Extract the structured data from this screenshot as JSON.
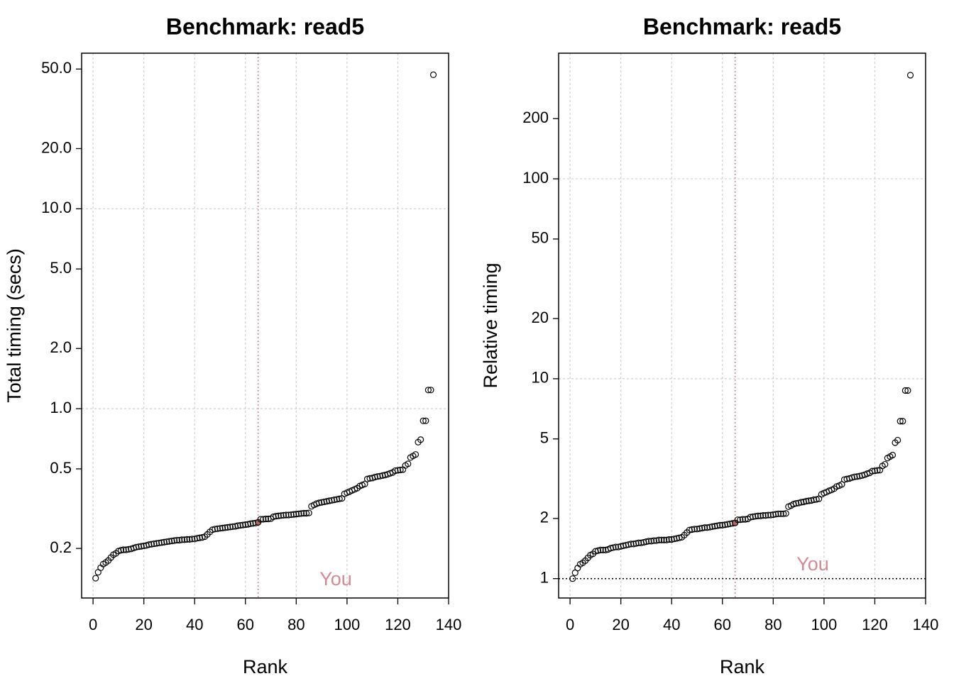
{
  "chart_data": [
    {
      "type": "scatter",
      "title": "Benchmark: read5",
      "x_label": "Rank",
      "y_label": "Total timing (secs)",
      "log_y": true,
      "xlim": [
        -4.5,
        140
      ],
      "ylim": [
        0.113,
        60
      ],
      "xticks": [
        0,
        20,
        40,
        60,
        80,
        100,
        120,
        140
      ],
      "yticks": [
        0.2,
        0.5,
        {
          "value": 1,
          "label": "1.0"
        },
        {
          "value": 2,
          "label": "2.0"
        },
        {
          "value": 5,
          "label": "5.0"
        },
        {
          "value": 10,
          "label": "10.0"
        },
        {
          "value": 20,
          "label": "20.0"
        },
        {
          "value": 50,
          "label": "50.0"
        }
      ],
      "xgrid": [
        0,
        20,
        40,
        60,
        80,
        100,
        120
      ],
      "ygrid": [
        1,
        10
      ],
      "grid": true,
      "color": "#000000",
      "highlight": {
        "x": 65,
        "label": "You",
        "color": "#d48a94",
        "point_color": "#b5675f"
      },
      "x": [
        1,
        2,
        3,
        4,
        5,
        6,
        7,
        8,
        9,
        10,
        11,
        12,
        13,
        14,
        15,
        16,
        17,
        18,
        19,
        20,
        21,
        22,
        23,
        24,
        25,
        26,
        27,
        28,
        29,
        30,
        31,
        32,
        33,
        34,
        35,
        36,
        37,
        38,
        39,
        40,
        41,
        42,
        43,
        44,
        45,
        46,
        47,
        48,
        49,
        50,
        51,
        52,
        53,
        54,
        55,
        56,
        57,
        58,
        59,
        60,
        61,
        62,
        63,
        64,
        65,
        66,
        67,
        68,
        69,
        70,
        71,
        72,
        73,
        74,
        75,
        76,
        77,
        78,
        79,
        80,
        81,
        82,
        83,
        84,
        85,
        86,
        87,
        88,
        89,
        90,
        91,
        92,
        93,
        94,
        95,
        96,
        97,
        98,
        99,
        100,
        101,
        102,
        103,
        104,
        105,
        106,
        107,
        108,
        109,
        110,
        111,
        112,
        113,
        114,
        115,
        116,
        117,
        118,
        119,
        120,
        121,
        122,
        123,
        124,
        125,
        126,
        127,
        128,
        129,
        130,
        131,
        132,
        133,
        134
      ],
      "values": [
        0.142,
        0.152,
        0.16,
        0.167,
        0.17,
        0.174,
        0.18,
        0.186,
        0.189,
        0.194,
        0.196,
        0.197,
        0.197,
        0.198,
        0.199,
        0.201,
        0.203,
        0.204,
        0.205,
        0.206,
        0.207,
        0.209,
        0.21,
        0.211,
        0.212,
        0.213,
        0.214,
        0.215,
        0.216,
        0.217,
        0.218,
        0.219,
        0.22,
        0.22,
        0.221,
        0.221,
        0.222,
        0.222,
        0.223,
        0.223,
        0.225,
        0.226,
        0.227,
        0.229,
        0.235,
        0.242,
        0.248,
        0.25,
        0.251,
        0.252,
        0.253,
        0.254,
        0.255,
        0.256,
        0.257,
        0.258,
        0.26,
        0.261,
        0.262,
        0.263,
        0.264,
        0.266,
        0.267,
        0.268,
        0.27,
        0.28,
        0.28,
        0.281,
        0.281,
        0.282,
        0.288,
        0.29,
        0.291,
        0.292,
        0.293,
        0.294,
        0.294,
        0.295,
        0.296,
        0.297,
        0.298,
        0.299,
        0.3,
        0.3,
        0.301,
        0.325,
        0.33,
        0.335,
        0.338,
        0.34,
        0.342,
        0.344,
        0.346,
        0.348,
        0.35,
        0.352,
        0.354,
        0.356,
        0.375,
        0.38,
        0.385,
        0.39,
        0.395,
        0.4,
        0.41,
        0.415,
        0.42,
        0.445,
        0.448,
        0.45,
        0.455,
        0.458,
        0.46,
        0.463,
        0.466,
        0.47,
        0.475,
        0.48,
        0.49,
        0.492,
        0.494,
        0.496,
        0.52,
        0.53,
        0.57,
        0.58,
        0.59,
        0.68,
        0.7,
        0.87,
        0.87,
        1.24,
        1.24,
        46.8
      ]
    },
    {
      "type": "scatter",
      "title": "Benchmark: read5",
      "x_label": "Rank",
      "y_label": "Relative timing",
      "log_y": true,
      "xlim": [
        -4.5,
        140
      ],
      "ylim": [
        0.8,
        425
      ],
      "xticks": [
        0,
        20,
        40,
        60,
        80,
        100,
        120,
        140
      ],
      "yticks": [
        1,
        2,
        5,
        10,
        20,
        50,
        100,
        200
      ],
      "xgrid": [
        0,
        20,
        40,
        60,
        80,
        100,
        120
      ],
      "ygrid": [
        10,
        100
      ],
      "grid": true,
      "color": "#000000",
      "reference_line": 1,
      "highlight": {
        "x": 65,
        "label": "You",
        "color": "#d48a94",
        "point_color": "#b5675f"
      },
      "x": [
        1,
        2,
        3,
        4,
        5,
        6,
        7,
        8,
        9,
        10,
        11,
        12,
        13,
        14,
        15,
        16,
        17,
        18,
        19,
        20,
        21,
        22,
        23,
        24,
        25,
        26,
        27,
        28,
        29,
        30,
        31,
        32,
        33,
        34,
        35,
        36,
        37,
        38,
        39,
        40,
        41,
        42,
        43,
        44,
        45,
        46,
        47,
        48,
        49,
        50,
        51,
        52,
        53,
        54,
        55,
        56,
        57,
        58,
        59,
        60,
        61,
        62,
        63,
        64,
        65,
        66,
        67,
        68,
        69,
        70,
        71,
        72,
        73,
        74,
        75,
        76,
        77,
        78,
        79,
        80,
        81,
        82,
        83,
        84,
        85,
        86,
        87,
        88,
        89,
        90,
        91,
        92,
        93,
        94,
        95,
        96,
        97,
        98,
        99,
        100,
        101,
        102,
        103,
        104,
        105,
        106,
        107,
        108,
        109,
        110,
        111,
        112,
        113,
        114,
        115,
        116,
        117,
        118,
        119,
        120,
        121,
        122,
        123,
        124,
        125,
        126,
        127,
        128,
        129,
        130,
        131,
        132,
        133,
        134
      ],
      "values": [
        1.0,
        1.07,
        1.13,
        1.18,
        1.2,
        1.23,
        1.27,
        1.31,
        1.33,
        1.37,
        1.38,
        1.39,
        1.39,
        1.39,
        1.4,
        1.42,
        1.43,
        1.44,
        1.44,
        1.45,
        1.46,
        1.47,
        1.48,
        1.49,
        1.49,
        1.5,
        1.51,
        1.51,
        1.52,
        1.53,
        1.54,
        1.54,
        1.55,
        1.55,
        1.56,
        1.56,
        1.56,
        1.56,
        1.57,
        1.57,
        1.58,
        1.59,
        1.6,
        1.61,
        1.65,
        1.7,
        1.75,
        1.76,
        1.77,
        1.77,
        1.78,
        1.79,
        1.8,
        1.8,
        1.81,
        1.82,
        1.83,
        1.84,
        1.85,
        1.85,
        1.86,
        1.87,
        1.88,
        1.89,
        1.9,
        1.97,
        1.97,
        1.98,
        1.98,
        1.99,
        2.03,
        2.04,
        2.05,
        2.06,
        2.06,
        2.07,
        2.07,
        2.08,
        2.08,
        2.09,
        2.1,
        2.11,
        2.11,
        2.11,
        2.12,
        2.29,
        2.32,
        2.36,
        2.38,
        2.39,
        2.41,
        2.42,
        2.44,
        2.45,
        2.46,
        2.48,
        2.49,
        2.51,
        2.64,
        2.68,
        2.71,
        2.75,
        2.78,
        2.82,
        2.89,
        2.92,
        2.96,
        3.13,
        3.15,
        3.17,
        3.2,
        3.23,
        3.24,
        3.26,
        3.28,
        3.31,
        3.35,
        3.38,
        3.45,
        3.46,
        3.48,
        3.49,
        3.66,
        3.73,
        4.01,
        4.08,
        4.15,
        4.79,
        4.93,
        6.13,
        6.13,
        8.73,
        8.73,
        330
      ]
    }
  ]
}
